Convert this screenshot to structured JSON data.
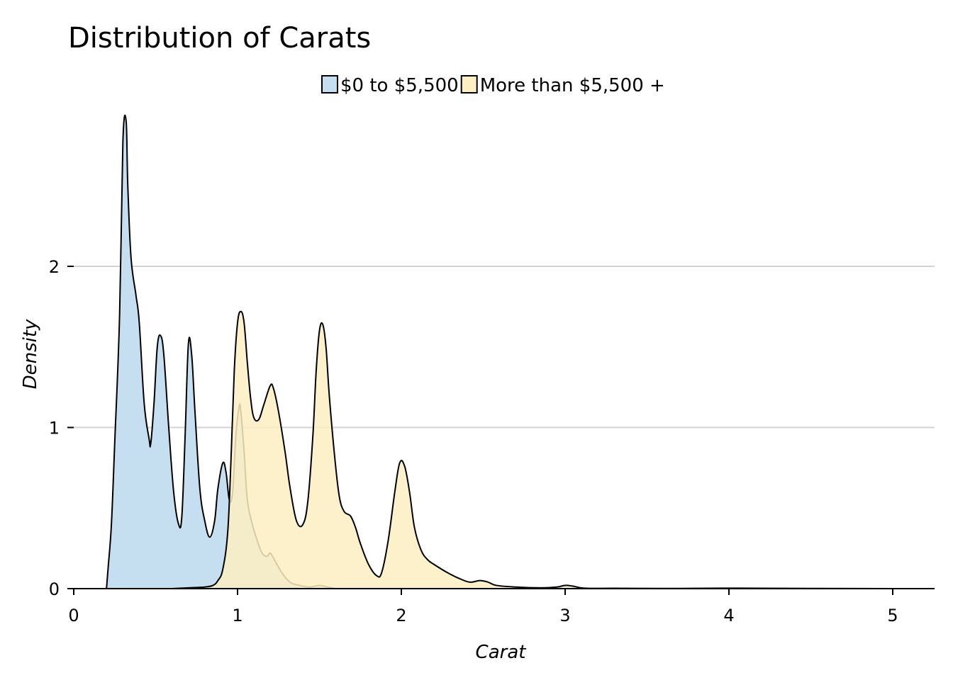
{
  "chart_data": {
    "type": "area",
    "title": "Distribution of Carats",
    "xlabel": "Carat",
    "ylabel": "Density",
    "xlim": [
      0,
      5.25
    ],
    "ylim": [
      0,
      2.9
    ],
    "x_ticks": [
      0,
      1,
      2,
      3,
      4,
      5
    ],
    "y_ticks": [
      0,
      1,
      2
    ],
    "x_tick_labels": [
      "0",
      "1",
      "2",
      "3",
      "4",
      "5"
    ],
    "y_tick_labels": [
      "0",
      "1",
      "2"
    ],
    "grid": {
      "horizontal": true,
      "vertical": false
    },
    "legend": {
      "position": "top",
      "entries": [
        "$0 to $5,500",
        "More than $5,500 +"
      ]
    },
    "series": [
      {
        "name": "$0 to $5,500",
        "color": "#c6dff0",
        "opacity": 1,
        "x": [
          0.2,
          0.21,
          0.23,
          0.25,
          0.28,
          0.3,
          0.32,
          0.33,
          0.35,
          0.38,
          0.4,
          0.43,
          0.46,
          0.47,
          0.49,
          0.51,
          0.53,
          0.55,
          0.58,
          0.61,
          0.64,
          0.66,
          0.68,
          0.7,
          0.72,
          0.74,
          0.77,
          0.8,
          0.83,
          0.86,
          0.88,
          0.91,
          0.93,
          0.95,
          0.97,
          0.99,
          1.01,
          1.02,
          1.04,
          1.06,
          1.09,
          1.12,
          1.15,
          1.18,
          1.2,
          1.23,
          1.27,
          1.32,
          1.38,
          1.44,
          1.5,
          1.55,
          1.6
        ],
        "y": [
          0,
          0.13,
          0.4,
          0.9,
          1.7,
          2.77,
          2.9,
          2.5,
          2.05,
          1.82,
          1.65,
          1.15,
          0.93,
          0.9,
          1.15,
          1.5,
          1.57,
          1.45,
          1.0,
          0.6,
          0.4,
          0.45,
          0.95,
          1.52,
          1.45,
          1.1,
          0.62,
          0.42,
          0.32,
          0.42,
          0.62,
          0.78,
          0.72,
          0.55,
          0.6,
          0.95,
          1.13,
          1.1,
          0.85,
          0.55,
          0.4,
          0.3,
          0.22,
          0.2,
          0.22,
          0.17,
          0.1,
          0.04,
          0.02,
          0.01,
          0.02,
          0.01,
          0.0
        ]
      },
      {
        "name": "More than $5,500 +",
        "color": "#fdefc3",
        "opacity": 0.85,
        "x": [
          0.6,
          0.7,
          0.8,
          0.85,
          0.88,
          0.91,
          0.94,
          0.96,
          0.98,
          1.0,
          1.02,
          1.04,
          1.06,
          1.08,
          1.1,
          1.13,
          1.16,
          1.2,
          1.22,
          1.25,
          1.29,
          1.32,
          1.36,
          1.4,
          1.43,
          1.46,
          1.48,
          1.5,
          1.52,
          1.54,
          1.56,
          1.59,
          1.62,
          1.65,
          1.69,
          1.72,
          1.75,
          1.8,
          1.85,
          1.88,
          1.92,
          1.96,
          1.99,
          2.02,
          2.05,
          2.08,
          2.12,
          2.16,
          2.2,
          2.28,
          2.36,
          2.42,
          2.48,
          2.53,
          2.58,
          2.7,
          2.85,
          2.95,
          3.0,
          3.05,
          3.12,
          3.3,
          3.6,
          4.0,
          4.5,
          5.0,
          5.25
        ],
        "y": [
          0,
          0.005,
          0.01,
          0.02,
          0.05,
          0.12,
          0.35,
          0.8,
          1.35,
          1.65,
          1.72,
          1.65,
          1.4,
          1.18,
          1.06,
          1.05,
          1.14,
          1.26,
          1.24,
          1.1,
          0.85,
          0.63,
          0.42,
          0.4,
          0.55,
          0.95,
          1.35,
          1.6,
          1.64,
          1.5,
          1.2,
          0.85,
          0.58,
          0.48,
          0.45,
          0.38,
          0.28,
          0.15,
          0.08,
          0.1,
          0.3,
          0.6,
          0.78,
          0.76,
          0.6,
          0.38,
          0.24,
          0.18,
          0.15,
          0.1,
          0.06,
          0.04,
          0.05,
          0.04,
          0.02,
          0.01,
          0.005,
          0.01,
          0.02,
          0.015,
          0.003,
          0.002,
          0.001,
          0.003,
          0.001,
          0.0,
          0.0
        ]
      }
    ]
  }
}
